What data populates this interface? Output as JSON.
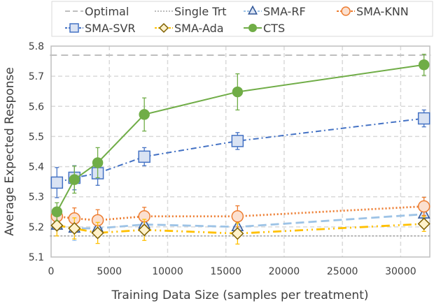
{
  "chart_data": {
    "type": "line",
    "title": "",
    "xlabel": "Training Data Size (samples per treatment)",
    "ylabel": "Average Expected Response",
    "xlim": [
      0,
      32500
    ],
    "ylim": [
      5.1,
      5.8
    ],
    "xticks": [
      0,
      5000,
      10000,
      15000,
      20000,
      25000,
      30000
    ],
    "xtick_labels": [
      "0",
      "5000",
      "10000",
      "15000",
      "20000",
      "25000",
      "30000"
    ],
    "yticks": [
      5.1,
      5.2,
      5.3,
      5.4,
      5.5,
      5.6,
      5.7,
      5.8
    ],
    "ytick_labels": [
      "5.1",
      "5.2",
      "5.3",
      "5.4",
      "5.5",
      "5.6",
      "5.7",
      "5.8"
    ],
    "grid": true,
    "legend_position": "top",
    "x": [
      500,
      2000,
      4000,
      8000,
      16000,
      32000
    ],
    "series": [
      {
        "name": "Optimal",
        "style": "dashed-long",
        "color": "#bfbfbf",
        "marker": "none",
        "values": [
          5.77,
          5.77,
          5.77,
          5.77,
          5.77,
          5.77
        ]
      },
      {
        "name": "Single Trt",
        "style": "dashed-short",
        "color": "#a6a6a6",
        "marker": "none",
        "values": [
          5.17,
          5.17,
          5.17,
          5.17,
          5.17,
          5.17
        ]
      },
      {
        "name": "SMA-RF",
        "style": "dashed",
        "color": "#9dc3e6",
        "marker": "triangle",
        "marker_edge": "#2f5597",
        "marker_fill": "#dae3f3",
        "values": [
          5.205,
          5.195,
          5.195,
          5.208,
          5.2,
          5.242
        ],
        "err": [
          0.015,
          0.04,
          0.03,
          0.02,
          0.02,
          0.015
        ]
      },
      {
        "name": "SMA-KNN",
        "style": "dotted",
        "color": "#ed7d31",
        "marker": "circle",
        "marker_edge": "#ed7d31",
        "marker_fill": "#fbe0d0",
        "values": [
          5.235,
          5.228,
          5.222,
          5.235,
          5.235,
          5.268
        ],
        "err": [
          0.03,
          0.035,
          0.035,
          0.03,
          0.035,
          0.03
        ]
      },
      {
        "name": "SMA-SVR",
        "style": "dashdot",
        "color": "#4472c4",
        "marker": "square",
        "marker_edge": "#4472c4",
        "marker_fill": "#dae3f3",
        "values": [
          5.347,
          5.363,
          5.378,
          5.433,
          5.485,
          5.56
        ],
        "err": [
          0.05,
          0.04,
          0.04,
          0.03,
          0.028,
          0.028
        ]
      },
      {
        "name": "SMA-Ada",
        "style": "dashdotdot",
        "color": "#ffc000",
        "marker": "diamond",
        "marker_edge": "#7f6000",
        "marker_fill": "#fff2cc",
        "values": [
          5.205,
          5.195,
          5.18,
          5.19,
          5.178,
          5.21
        ],
        "err": [
          0.035,
          0.035,
          0.035,
          0.035,
          0.035,
          0.025
        ]
      },
      {
        "name": "CTS",
        "style": "solid",
        "color": "#70ad47",
        "marker": "filled-circle",
        "marker_edge": "#70ad47",
        "marker_fill": "#70ad47",
        "values": [
          5.25,
          5.357,
          5.413,
          5.573,
          5.648,
          5.738
        ],
        "err": [
          0.03,
          0.045,
          0.05,
          0.055,
          0.06,
          0.035
        ]
      }
    ]
  }
}
